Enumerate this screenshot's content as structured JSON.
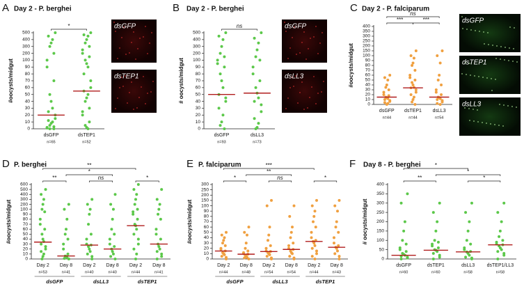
{
  "chart_data": [
    {
      "type": "strip",
      "panel_label": "A",
      "title": "Day 2 - P. berghei",
      "ylabel": "#oocysts/midgut",
      "color": "#5cc84a",
      "median_color": "#b01c1c",
      "broken_axis": true,
      "categories": [
        "dsGFP",
        "dsTEP1"
      ],
      "n_labels": [
        "n=65",
        "n=52"
      ],
      "values": [
        [
          500,
          450,
          400,
          350,
          300,
          200,
          100,
          90,
          70,
          50,
          40,
          30,
          25,
          20,
          15,
          12,
          10,
          8,
          5,
          3,
          2,
          1,
          0,
          0
        ],
        [
          500,
          470,
          450,
          400,
          350,
          300,
          250,
          200,
          150,
          100,
          95,
          90,
          80,
          70,
          60,
          55,
          50,
          45,
          40,
          30,
          25,
          20,
          10,
          5,
          2,
          0
        ]
      ],
      "medians": [
        20,
        55
      ],
      "ylim": [
        0,
        500
      ],
      "yticks": [
        0,
        10,
        20,
        30,
        40,
        50,
        60,
        70,
        80,
        90,
        100,
        200,
        300,
        400,
        500
      ],
      "brackets": [
        {
          "from": 0,
          "to": 1,
          "label": "*"
        }
      ],
      "images": [
        {
          "label": "dsGFP",
          "tone": "red"
        },
        {
          "label": "dsTEP1",
          "tone": "red"
        }
      ]
    },
    {
      "type": "strip",
      "panel_label": "B",
      "title": "Day 2 - P. berghei",
      "ylabel": "# oocysts/midgut",
      "color": "#5cc84a",
      "median_color": "#b01c1c",
      "broken_axis": true,
      "categories": [
        "dsGFP",
        "dsLL3"
      ],
      "n_labels": [
        "n=93",
        "n=73"
      ],
      "values": [
        [
          500,
          450,
          400,
          300,
          200,
          150,
          100,
          95,
          90,
          80,
          70,
          60,
          50,
          45,
          40,
          30,
          20,
          10,
          5,
          0
        ],
        [
          500,
          420,
          350,
          250,
          150,
          100,
          90,
          80,
          70,
          60,
          52,
          45,
          40,
          35,
          25,
          15,
          8,
          2,
          0
        ]
      ],
      "medians": [
        50,
        52
      ],
      "ylim": [
        0,
        500
      ],
      "yticks": [
        0,
        10,
        20,
        30,
        40,
        50,
        60,
        70,
        80,
        90,
        100,
        200,
        300,
        400,
        500
      ],
      "brackets": [
        {
          "from": 0,
          "to": 1,
          "label": "ns"
        }
      ],
      "images": [
        {
          "label": "dsGFP",
          "tone": "red"
        },
        {
          "label": "dsLL3",
          "tone": "red"
        }
      ]
    },
    {
      "type": "strip",
      "panel_label": "C",
      "title": "Day 2 - P. falciparum",
      "ylabel": "#oocysts/midgut",
      "color": "#f0a040",
      "median_color": "#b01c1c",
      "broken_axis": true,
      "categories": [
        "dsGFP",
        "dsTEP1",
        "dsLL3"
      ],
      "n_labels": [
        "n=44",
        "n=44",
        "n=54"
      ],
      "values": [
        [
          60,
          55,
          50,
          40,
          35,
          30,
          25,
          20,
          18,
          15,
          14,
          12,
          10,
          8,
          6,
          4,
          2,
          0
        ],
        [
          150,
          100,
          95,
          85,
          80,
          70,
          60,
          55,
          50,
          45,
          40,
          35,
          34,
          30,
          25,
          20,
          15,
          10,
          5,
          0
        ],
        [
          150,
          100,
          85,
          60,
          50,
          40,
          30,
          25,
          20,
          15,
          14,
          12,
          10,
          8,
          5,
          2,
          0
        ]
      ],
      "medians": [
        15,
        34,
        15
      ],
      "ylim": [
        0,
        400
      ],
      "yticks": [
        0,
        10,
        20,
        30,
        40,
        50,
        60,
        70,
        80,
        90,
        100,
        150,
        200,
        250,
        300,
        350,
        400
      ],
      "brackets": [
        {
          "from": 0,
          "to": 1,
          "label": "***"
        },
        {
          "from": 1,
          "to": 2,
          "label": "***"
        },
        {
          "from": 0,
          "to": 2,
          "label": "ns"
        }
      ],
      "images": [
        {
          "label": "dsGFP",
          "tone": "green"
        },
        {
          "label": "dsTEP1",
          "tone": "green"
        },
        {
          "label": "dsLL3",
          "tone": "green"
        }
      ]
    },
    {
      "type": "strip",
      "panel_label": "D",
      "title": "P. berghei",
      "ylabel": "#oocysts/midgut",
      "color": "#5cc84a",
      "median_color": "#b01c1c",
      "broken_axis": true,
      "categories": [
        "Day 2",
        "Day 8",
        "Day 2",
        "Day 8",
        "Day 2",
        "Day 8"
      ],
      "n_labels": [
        "n=53",
        "n=41",
        "n=40",
        "n=40",
        "n=44",
        "n=41"
      ],
      "groups": [
        "dsGFP",
        "dsLL3",
        "dsTEP1"
      ],
      "values": [
        [
          500,
          400,
          300,
          200,
          100,
          95,
          80,
          70,
          60,
          50,
          40,
          35,
          30,
          25,
          20,
          15,
          10,
          5,
          0
        ],
        [
          200,
          100,
          80,
          60,
          50,
          40,
          30,
          20,
          10,
          6,
          5,
          3,
          1,
          0,
          0
        ],
        [
          300,
          200,
          100,
          90,
          70,
          50,
          40,
          30,
          28,
          25,
          20,
          15,
          10,
          5,
          0
        ],
        [
          400,
          200,
          100,
          80,
          60,
          50,
          40,
          30,
          25,
          20,
          15,
          10,
          5,
          0
        ],
        [
          600,
          500,
          400,
          300,
          200,
          100,
          95,
          90,
          80,
          70,
          67,
          60,
          50,
          40,
          30,
          20,
          10,
          0
        ],
        [
          500,
          300,
          200,
          100,
          90,
          80,
          60,
          50,
          40,
          30,
          25,
          20,
          15,
          10,
          5,
          0
        ]
      ],
      "medians": [
        34,
        6,
        28,
        20,
        67,
        30
      ],
      "ylim": [
        0,
        600
      ],
      "yticks": [
        0,
        10,
        20,
        30,
        40,
        50,
        60,
        70,
        80,
        90,
        100,
        200,
        300,
        400,
        500,
        600
      ],
      "brackets": [
        {
          "from": 0,
          "to": 1,
          "label": "**"
        },
        {
          "from": 2,
          "to": 3,
          "label": "ns"
        },
        {
          "from": 4,
          "to": 5,
          "label": "*"
        },
        {
          "from": 1,
          "to": 3,
          "label": "*"
        },
        {
          "from": 0,
          "to": 4,
          "label": "**"
        }
      ]
    },
    {
      "type": "strip",
      "panel_label": "E",
      "title": "P. falciparum",
      "ylabel": "#oocysts/midgut",
      "color": "#f0a040",
      "median_color": "#b01c1c",
      "broken_axis": true,
      "categories": [
        "Day 2",
        "Day 8",
        "Day 2",
        "Day 8",
        "Day 2",
        "Day 8"
      ],
      "n_labels": [
        "n=44",
        "n=48",
        "n=54",
        "n=54",
        "n=44",
        "n=43"
      ],
      "groups": [
        "dsGFP",
        "dsLL3",
        "dsTEP1"
      ],
      "values": [
        [
          50,
          45,
          40,
          35,
          30,
          25,
          20,
          18,
          15,
          12,
          10,
          8,
          5,
          3,
          0
        ],
        [
          60,
          50,
          45,
          30,
          20,
          15,
          12,
          10,
          9,
          7,
          5,
          3,
          2,
          0
        ],
        [
          150,
          100,
          60,
          45,
          35,
          25,
          20,
          15,
          14,
          12,
          10,
          8,
          5,
          2,
          0
        ],
        [
          100,
          80,
          60,
          50,
          40,
          30,
          25,
          20,
          18,
          15,
          12,
          10,
          5,
          2,
          0
        ],
        [
          150,
          100,
          90,
          80,
          70,
          60,
          50,
          40,
          35,
          33,
          30,
          25,
          20,
          15,
          10,
          5,
          0
        ],
        [
          150,
          100,
          90,
          70,
          60,
          50,
          40,
          30,
          25,
          22,
          20,
          15,
          10,
          5,
          0
        ]
      ],
      "medians": [
        15,
        9,
        14,
        18,
        33,
        22
      ],
      "ylim": [
        0,
        300
      ],
      "yticks": [
        0,
        10,
        20,
        30,
        40,
        50,
        60,
        70,
        80,
        90,
        100,
        150,
        200,
        250,
        300
      ],
      "brackets": [
        {
          "from": 0,
          "to": 1,
          "label": "*"
        },
        {
          "from": 2,
          "to": 3,
          "label": "ns"
        },
        {
          "from": 4,
          "to": 5,
          "label": "*"
        },
        {
          "from": 1,
          "to": 3,
          "label": "**"
        },
        {
          "from": 0,
          "to": 4,
          "label": "***"
        }
      ]
    },
    {
      "type": "strip",
      "panel_label": "F",
      "title": "Day 8 - P. berghei",
      "ylabel": "# oocysts/midgut",
      "color": "#5cc84a",
      "median_color": "#b01c1c",
      "broken_axis": false,
      "categories": [
        "dsGFP",
        "dsTEP1",
        "dsLL3",
        "dsTEP1/LL3"
      ],
      "n_labels": [
        "n=60",
        "n=60",
        "n=58",
        "n=58"
      ],
      "values": [
        [
          350,
          300,
          200,
          150,
          100,
          80,
          60,
          50,
          40,
          30,
          25,
          20,
          15,
          10,
          5,
          0
        ],
        [
          300,
          250,
          200,
          150,
          100,
          90,
          80,
          70,
          60,
          50,
          47,
          40,
          30,
          20,
          10,
          0
        ],
        [
          300,
          250,
          200,
          150,
          100,
          80,
          60,
          50,
          40,
          38,
          30,
          20,
          10,
          5,
          0
        ],
        [
          300,
          250,
          200,
          150,
          120,
          100,
          90,
          80,
          76,
          70,
          60,
          50,
          40,
          30,
          20,
          0
        ]
      ],
      "medians": [
        20,
        47,
        38,
        76
      ],
      "ylim": [
        0,
        400
      ],
      "yticks": [
        0,
        50,
        100,
        150,
        200,
        250,
        300,
        350,
        400
      ],
      "brackets": [
        {
          "from": 0,
          "to": 1,
          "label": "**"
        },
        {
          "from": 2,
          "to": 3,
          "label": "*"
        },
        {
          "from": 1,
          "to": 3,
          "label": "*"
        },
        {
          "from": 0,
          "to": 2,
          "label": "*"
        }
      ]
    }
  ]
}
